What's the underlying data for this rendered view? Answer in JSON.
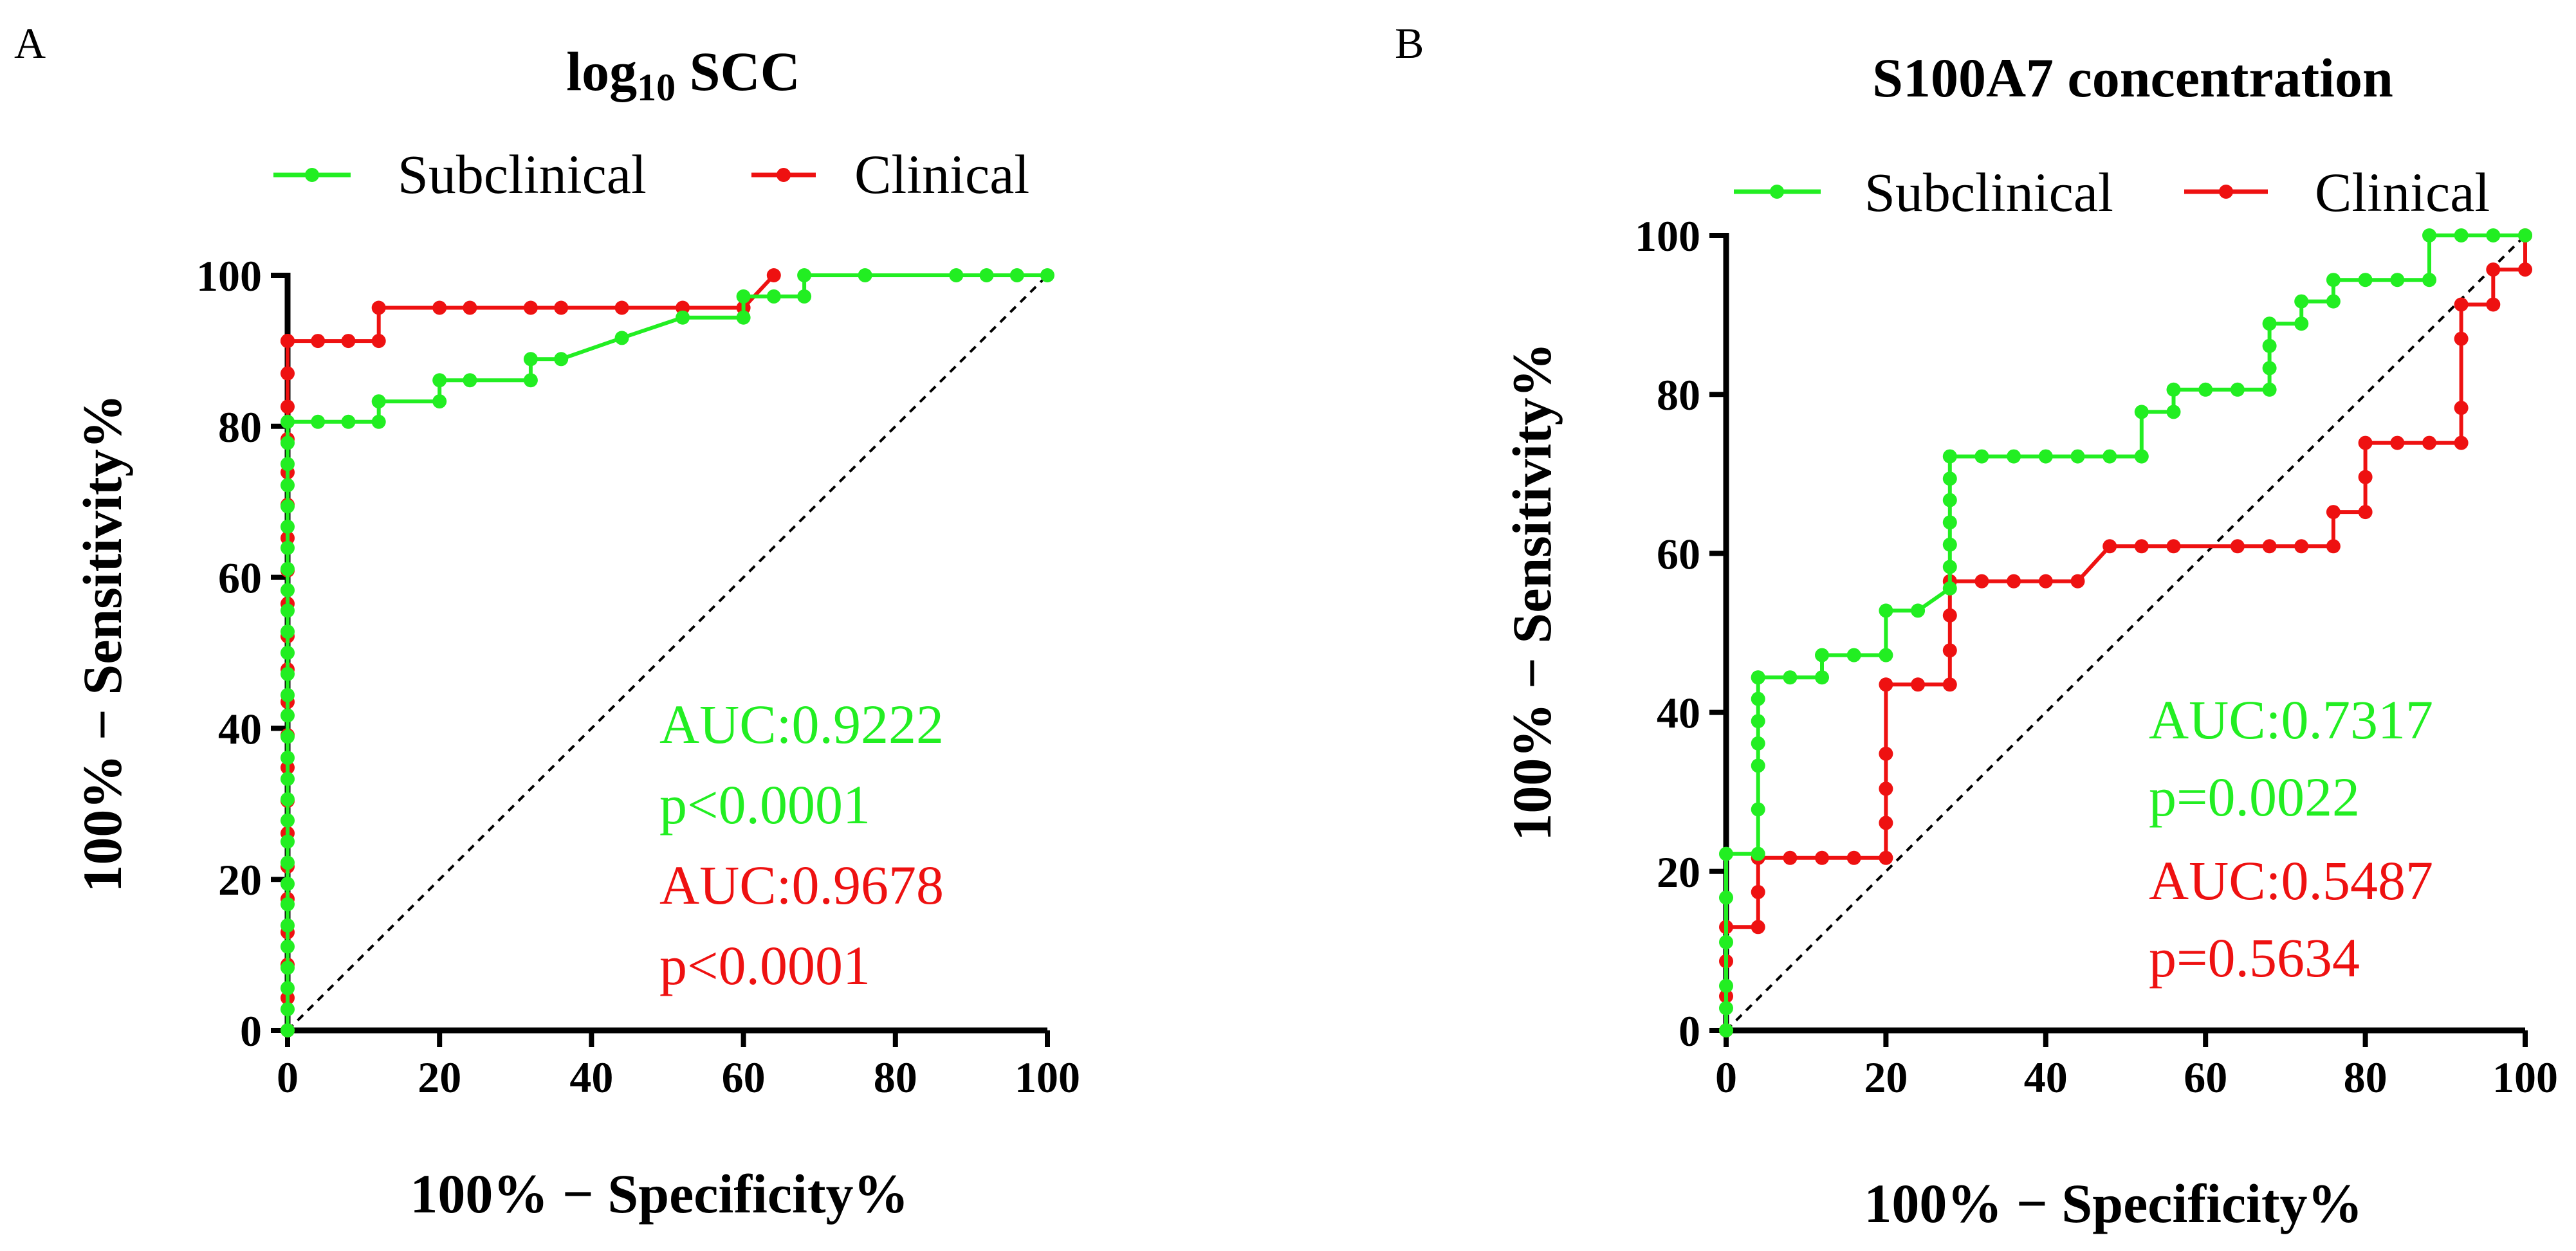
{
  "chart_data": [
    {
      "type": "line",
      "panel": "A",
      "title": "log₁₀ SCC",
      "xlabel": "100% − Specificity%",
      "ylabel": "100% − Sensitivity%",
      "xlim": [
        0,
        100
      ],
      "ylim": [
        0,
        100
      ],
      "xticks": [
        "0",
        "20",
        "40",
        "60",
        "80",
        "100"
      ],
      "yticks": [
        "0",
        "20",
        "40",
        "60",
        "80",
        "100"
      ],
      "reference_line": {
        "x": [
          0,
          100
        ],
        "y": [
          0,
          100
        ],
        "style": "dashed"
      },
      "legend": [
        "Subclinical",
        "Clinical"
      ],
      "series": [
        {
          "name": "Subclinical",
          "color": "#22ee22",
          "x": [
            0,
            0,
            0,
            0,
            0,
            0,
            0,
            0,
            0,
            0,
            0,
            0,
            0,
            0,
            0,
            0,
            0,
            0,
            0,
            0,
            0,
            0,
            0,
            0,
            0,
            0,
            0,
            0,
            0,
            0,
            4,
            8,
            12,
            12,
            20,
            20,
            24,
            32,
            32,
            36,
            44,
            52,
            60,
            60,
            64,
            68,
            68,
            76,
            88,
            92,
            96,
            100
          ],
          "y": [
            0,
            2.8,
            5.6,
            8.3,
            11.1,
            13.9,
            16.7,
            19.4,
            22.2,
            25,
            27.8,
            30.6,
            33.3,
            36.1,
            38.9,
            41.7,
            44.4,
            47.2,
            50,
            52.8,
            55.6,
            58.3,
            61.1,
            63.9,
            66.7,
            69.4,
            72.2,
            75,
            77.8,
            80.6,
            80.6,
            80.6,
            80.6,
            83.3,
            83.3,
            86.1,
            86.1,
            86.1,
            88.9,
            88.9,
            91.7,
            94.4,
            94.4,
            97.2,
            97.2,
            97.2,
            100,
            100,
            100,
            100,
            100,
            100
          ]
        },
        {
          "name": "Clinical",
          "color": "#ee1111",
          "x": [
            0,
            0,
            0,
            0,
            0,
            0,
            0,
            0,
            0,
            0,
            0,
            0,
            0,
            0,
            0,
            0,
            0,
            0,
            0,
            0,
            0,
            0,
            0,
            0,
            4,
            8,
            12,
            12,
            20,
            24,
            32,
            36,
            44,
            52,
            60,
            64
          ],
          "y": [
            0,
            4.3,
            8.7,
            13,
            17.4,
            21.7,
            26.1,
            30.4,
            34.8,
            39.1,
            43.5,
            47.8,
            52.2,
            56.5,
            60.9,
            65.2,
            69.6,
            73.9,
            78.3,
            82.6,
            87,
            91.3,
            91.3,
            91.3,
            91.3,
            91.3,
            91.3,
            95.7,
            95.7,
            95.7,
            95.7,
            95.7,
            95.7,
            95.7,
            95.7,
            100
          ]
        }
      ],
      "annotations": [
        {
          "text": "AUC:0.9222",
          "color": "#22ee22"
        },
        {
          "text": "p<0.0001",
          "color": "#22ee22"
        },
        {
          "text": "AUC:0.9678",
          "color": "#ee1111"
        },
        {
          "text": "p<0.0001",
          "color": "#ee1111"
        }
      ]
    },
    {
      "type": "line",
      "panel": "B",
      "title": "S100A7 concentration",
      "xlabel": "100% − Specificity%",
      "ylabel": "100% − Sensitivity%",
      "xlim": [
        0,
        100
      ],
      "ylim": [
        0,
        100
      ],
      "xticks": [
        "0",
        "20",
        "40",
        "60",
        "80",
        "100"
      ],
      "yticks": [
        "0",
        "20",
        "40",
        "60",
        "80",
        "100"
      ],
      "reference_line": {
        "x": [
          0,
          100
        ],
        "y": [
          0,
          100
        ],
        "style": "dashed"
      },
      "legend": [
        "Subclinical",
        "Clinical"
      ],
      "series": [
        {
          "name": "Subclinical",
          "color": "#22ee22",
          "x": [
            0,
            0,
            0,
            0,
            0,
            0,
            4,
            4,
            4,
            4,
            4,
            4,
            4,
            4,
            8,
            12,
            12,
            16,
            20,
            20,
            24,
            28,
            28,
            28,
            28,
            28,
            28,
            28,
            32,
            36,
            40,
            44,
            48,
            52,
            52,
            56,
            56,
            60,
            64,
            68,
            68,
            68,
            68,
            72,
            72,
            76,
            76,
            80,
            84,
            88,
            88,
            92,
            96,
            100
          ],
          "y": [
            0,
            2.8,
            5.6,
            11.1,
            16.7,
            22.2,
            22.2,
            27.8,
            33.3,
            36.1,
            38.9,
            41.7,
            44.4,
            44.4,
            44.4,
            44.4,
            47.2,
            47.2,
            47.2,
            52.8,
            52.8,
            55.6,
            58.3,
            61.1,
            63.9,
            66.7,
            69.4,
            72.2,
            72.2,
            72.2,
            72.2,
            72.2,
            72.2,
            72.2,
            77.8,
            77.8,
            80.6,
            80.6,
            80.6,
            80.6,
            83.3,
            86.1,
            88.9,
            88.9,
            91.7,
            91.7,
            94.4,
            94.4,
            94.4,
            94.4,
            100,
            100,
            100,
            100
          ]
        },
        {
          "name": "Clinical",
          "color": "#ee1111",
          "x": [
            0,
            0,
            0,
            0,
            4,
            4,
            4,
            8,
            12,
            16,
            20,
            20,
            20,
            20,
            20,
            24,
            28,
            28,
            28,
            28,
            32,
            36,
            40,
            44,
            48,
            52,
            56,
            64,
            68,
            72,
            76,
            76,
            80,
            80,
            80,
            84,
            88,
            92,
            92,
            92,
            92,
            96,
            96,
            100,
            100
          ],
          "y": [
            0,
            4.3,
            8.7,
            13,
            13,
            17.4,
            21.7,
            21.7,
            21.7,
            21.7,
            21.7,
            26.1,
            30.4,
            34.8,
            43.5,
            43.5,
            43.5,
            47.8,
            52.2,
            56.5,
            56.5,
            56.5,
            56.5,
            56.5,
            60.9,
            60.9,
            60.9,
            60.9,
            60.9,
            60.9,
            60.9,
            65.2,
            65.2,
            69.6,
            73.9,
            73.9,
            73.9,
            73.9,
            78.3,
            87,
            91.3,
            91.3,
            95.7,
            95.7,
            100
          ]
        }
      ],
      "annotations": [
        {
          "text": "AUC:0.7317",
          "color": "#22ee22"
        },
        {
          "text": "p=0.0022",
          "color": "#22ee22"
        },
        {
          "text": "AUC:0.5487",
          "color": "#ee1111"
        },
        {
          "text": "p=0.5634",
          "color": "#ee1111"
        }
      ]
    }
  ]
}
